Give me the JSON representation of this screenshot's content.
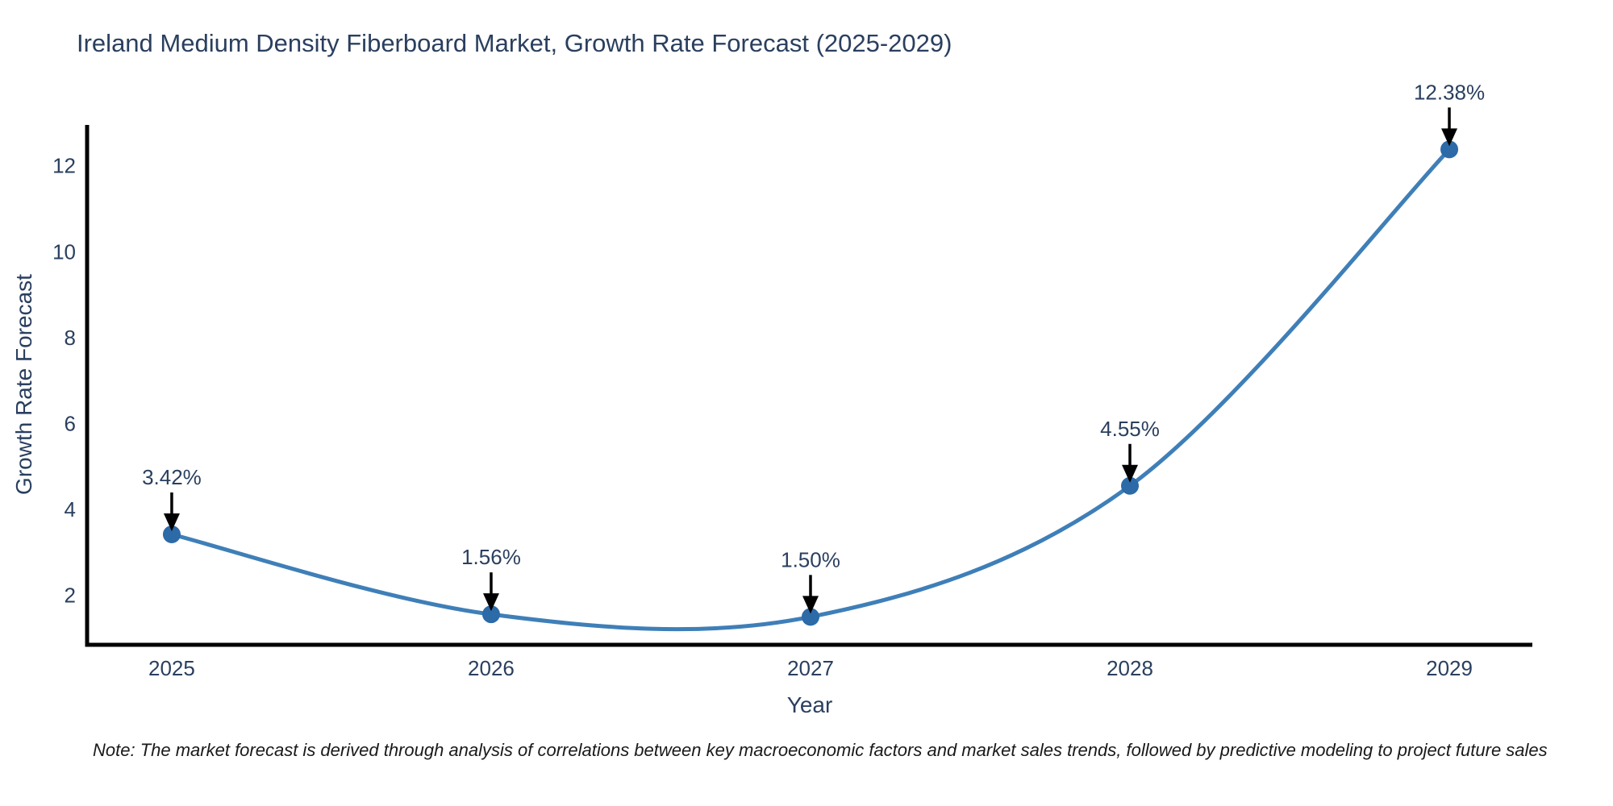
{
  "title": "Ireland Medium Density Fiberboard Market, Growth Rate Forecast (2025-2029)",
  "note": "Note: The market forecast is derived through analysis of correlations between key macroeconomic factors and market sales trends, followed by predictive modeling to project future sales",
  "chart_data": {
    "type": "line",
    "title": "Ireland Medium Density Fiberboard Market, Growth Rate Forecast (2025-2029)",
    "xlabel": "Year",
    "ylabel": "Growth Rate Forecast",
    "x": [
      2025,
      2026,
      2027,
      2028,
      2029
    ],
    "values": [
      3.42,
      1.56,
      1.5,
      4.55,
      12.38
    ],
    "point_labels": [
      "3.42%",
      "1.56%",
      "1.50%",
      "4.55%",
      "12.38%"
    ],
    "xticks": [
      "2025",
      "2026",
      "2027",
      "2028",
      "2029"
    ],
    "yticks": [
      2,
      4,
      6,
      8,
      10,
      12
    ],
    "xlim": [
      2024.735,
      2029.26
    ],
    "ylim": [
      0.85,
      12.95
    ],
    "line_shape": "spline",
    "grid": false,
    "legend": "none",
    "colors": {
      "line": "#3f7fb8",
      "marker": "#2c6aa8",
      "axis": "#000000",
      "tick_text": "#2a3f5f",
      "annotation_text": "#2a3f5f",
      "arrow": "#000000",
      "background": "#ffffff"
    }
  }
}
